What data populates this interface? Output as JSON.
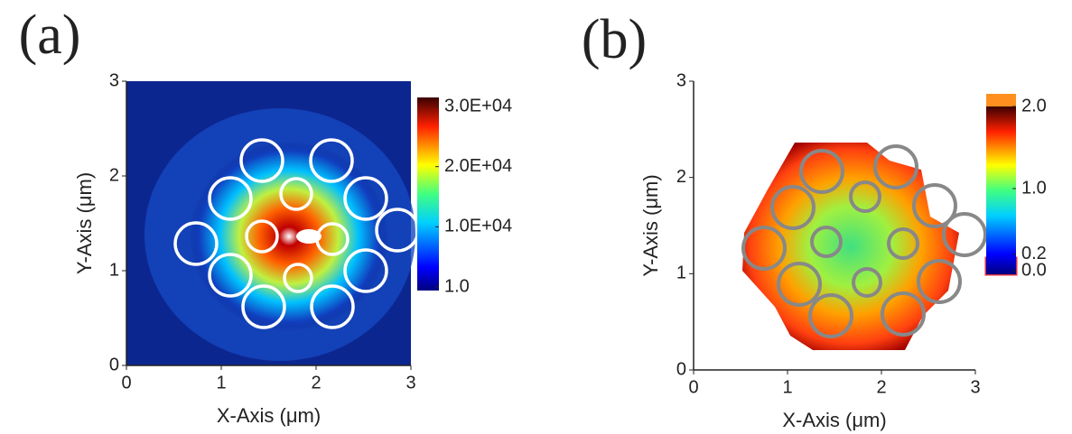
{
  "chart_data": [
    {
      "type": "heatmap",
      "panel_label": "(a)",
      "xlabel": "X-Axis (μm)",
      "ylabel": "Y-Axis (μm)",
      "xlim": [
        0,
        3
      ],
      "ylim": [
        0,
        3
      ],
      "xticks": [
        0,
        1,
        2,
        3
      ],
      "yticks": [
        0,
        1,
        2,
        3
      ],
      "colorbar": {
        "clim": [
          1,
          30000
        ],
        "ticks": [
          {
            "value": 30000,
            "label": "3.0E+04"
          },
          {
            "value": 20000,
            "label": "2.0E+04"
          },
          {
            "value": 10000,
            "label": "1.0E+04"
          },
          {
            "value": 1,
            "label": "1.0"
          }
        ]
      }
    },
    {
      "type": "heatmap",
      "panel_label": "(b)",
      "xlabel": "X-Axis (μm)",
      "ylabel": "Y-Axis (μm)",
      "xlim": [
        0,
        3
      ],
      "ylim": [
        0,
        3
      ],
      "xticks": [
        0,
        1,
        2,
        3
      ],
      "yticks": [
        0,
        1,
        2,
        3
      ],
      "colorbar": {
        "clim": [
          0,
          2.0
        ],
        "ticks": [
          {
            "value": 2.0,
            "label": "2.0"
          },
          {
            "value": 1.0,
            "label": "1.0"
          },
          {
            "value": 0.2,
            "label": "0.2"
          },
          {
            "value": 0.0,
            "label": "0.0"
          }
        ]
      }
    }
  ]
}
